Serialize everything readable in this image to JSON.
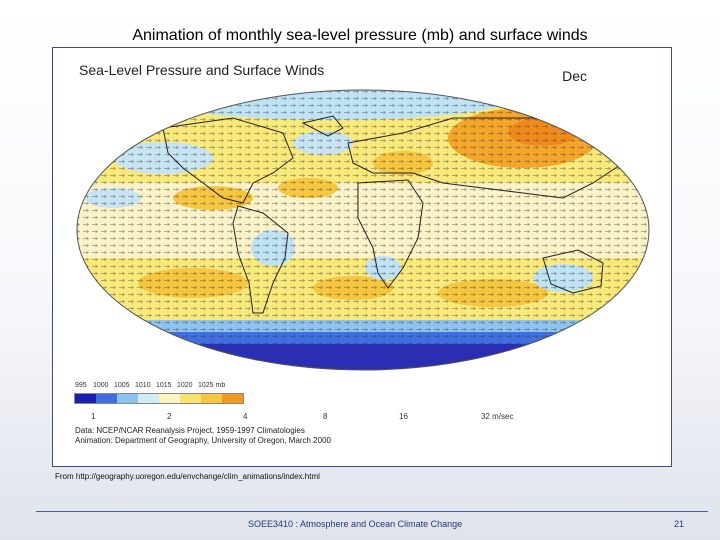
{
  "slide": {
    "title": "Animation of monthly sea-level pressure (mb) and surface winds",
    "footer_course": "SOEE3410 : Atmosphere and Ocean Climate Change",
    "page_number": "21",
    "source_note": "From http://geography.uoregon.edu/envchange/clim_animations/index.html"
  },
  "map": {
    "heading": "Sea-Level Pressure and Surface Winds",
    "month": "Dec",
    "pressure_scale": {
      "labels": [
        "995",
        "1000",
        "1005",
        "1010",
        "1015",
        "1020",
        "1025 mb"
      ],
      "colors": [
        "#1a1fb4",
        "#3f6ee0",
        "#8fc3ef",
        "#d2ecf6",
        "#fbf5c2",
        "#f6e56a",
        "#f6c640",
        "#f29a20"
      ]
    },
    "wind_scale": {
      "labels": [
        "1",
        "2",
        "4",
        "8",
        "16",
        "32 m/sec"
      ]
    },
    "credits": [
      "Data:  NCEP/NCAR Reanalysis Project, 1959-1997 Climatologies",
      "Animation: Department of Geography, University of Oregon, March 2000"
    ],
    "colors": {
      "background": "#f8e97a",
      "ocean_light": "#f8eab0",
      "tropics": "#fbf2c8",
      "low_blue": "#bfe2f5",
      "mid_blue": "#5b8fe6",
      "deep_blue": "#2a2db8",
      "high_orange": "#f4a62a",
      "coast": "#222222"
    }
  }
}
